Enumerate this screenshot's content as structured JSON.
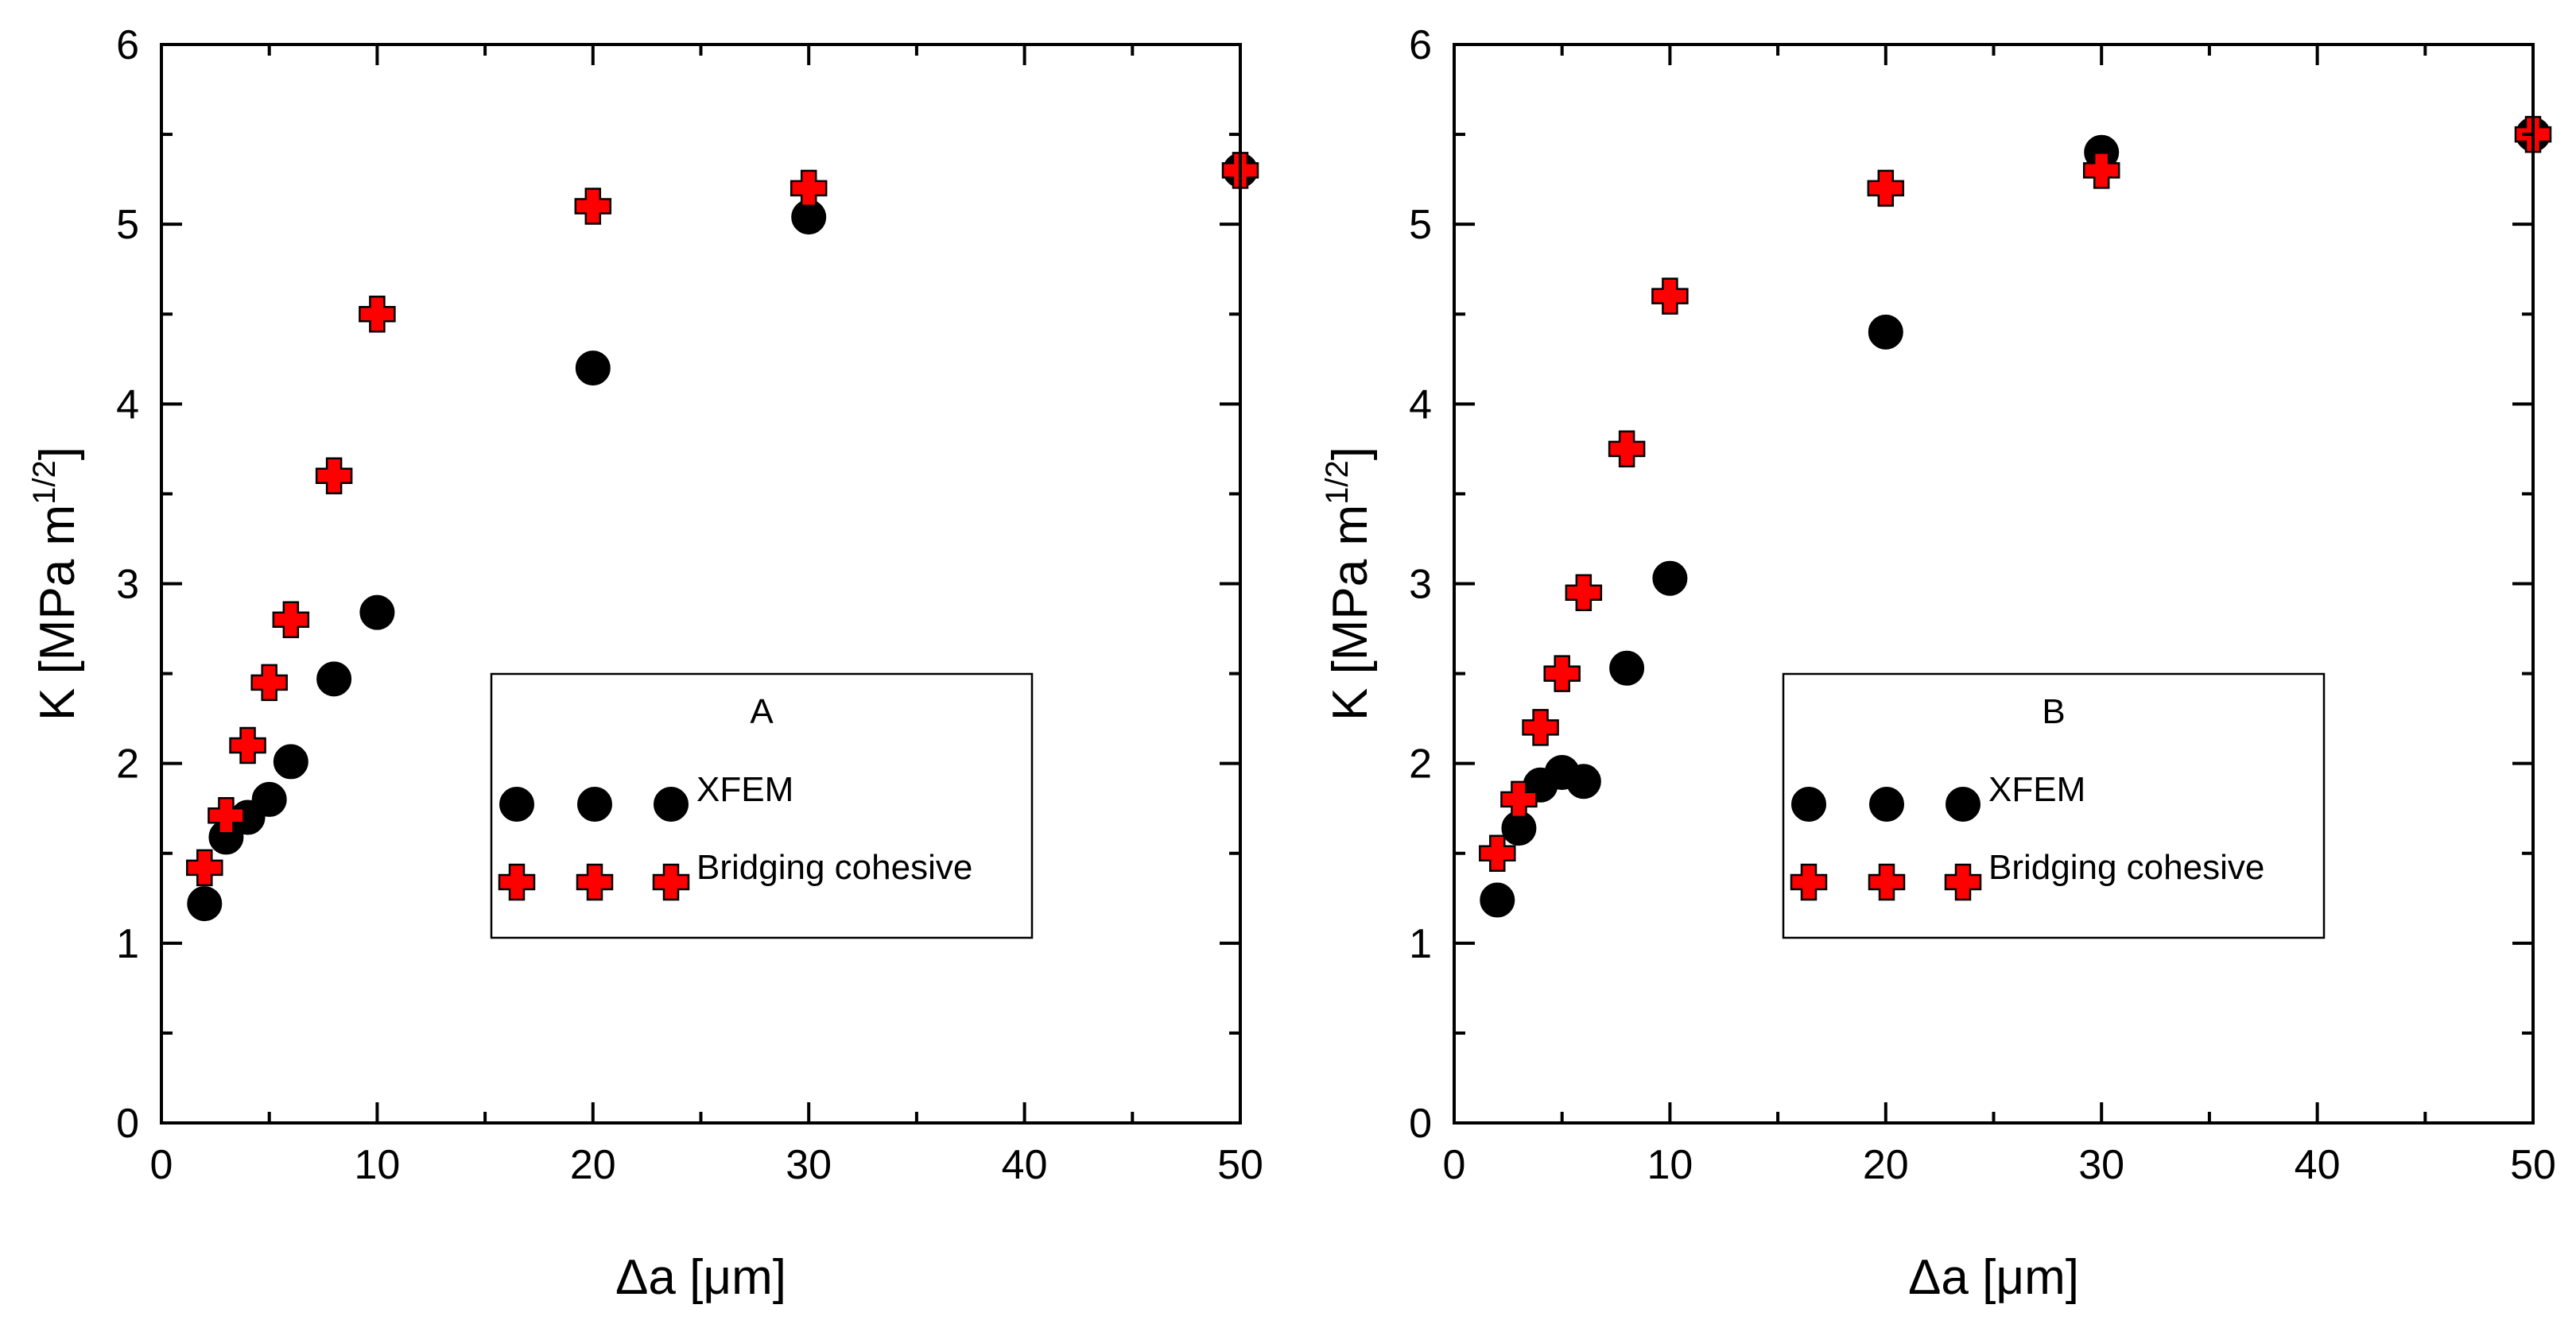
{
  "colors": {
    "xfem_marker": "#000000",
    "cohesive_marker": "#ff0000",
    "marker_outline": "#000000",
    "axis": "#000000"
  },
  "chart_data": [
    {
      "type": "scatter",
      "legend_title": "A",
      "xlabel": "Δa [μm]",
      "ylabel": "K [MPa m1/2]",
      "ylabel_base": "K [MPa m",
      "ylabel_sup": "1/2",
      "ylabel_close": "]",
      "xlim": [
        0,
        50
      ],
      "ylim": [
        0,
        6
      ],
      "x_ticks": [
        0,
        10,
        20,
        30,
        40,
        50
      ],
      "y_ticks": [
        0,
        1,
        2,
        3,
        4,
        5,
        6
      ],
      "grid": false,
      "legend_position": "center-right",
      "series": [
        {
          "name": "XFEM",
          "marker": "circle",
          "x": [
            2,
            3,
            4,
            5,
            6,
            8,
            10,
            20,
            30,
            50
          ],
          "y": [
            1.22,
            1.59,
            1.7,
            1.8,
            2.01,
            2.47,
            2.84,
            4.2,
            5.04,
            5.3
          ]
        },
        {
          "name": "Bridging cohesive",
          "marker": "plus",
          "x": [
            2,
            3,
            4,
            5,
            6,
            8,
            10,
            20,
            30,
            50
          ],
          "y": [
            1.42,
            1.71,
            2.1,
            2.45,
            2.8,
            3.6,
            4.5,
            5.1,
            5.2,
            5.3
          ]
        }
      ]
    },
    {
      "type": "scatter",
      "legend_title": "B",
      "xlabel": "Δa [μm]",
      "ylabel": "K [MPa m1/2]",
      "ylabel_base": "K [MPa m",
      "ylabel_sup": "1/2",
      "ylabel_close": "]",
      "xlim": [
        0,
        50
      ],
      "ylim": [
        0,
        6
      ],
      "x_ticks": [
        0,
        10,
        20,
        30,
        40,
        50
      ],
      "y_ticks": [
        0,
        1,
        2,
        3,
        4,
        5,
        6
      ],
      "grid": false,
      "legend_position": "center-right",
      "series": [
        {
          "name": "XFEM",
          "marker": "circle",
          "x": [
            2,
            3,
            4,
            5,
            6,
            8,
            10,
            20,
            30,
            50
          ],
          "y": [
            1.24,
            1.64,
            1.88,
            1.95,
            1.9,
            2.53,
            3.03,
            4.4,
            5.4,
            5.5
          ]
        },
        {
          "name": "Bridging cohesive",
          "marker": "plus",
          "x": [
            2,
            3,
            4,
            5,
            6,
            8,
            10,
            20,
            30,
            50
          ],
          "y": [
            1.5,
            1.8,
            2.2,
            2.5,
            2.95,
            3.75,
            4.6,
            5.2,
            5.3,
            5.5
          ]
        }
      ]
    }
  ]
}
